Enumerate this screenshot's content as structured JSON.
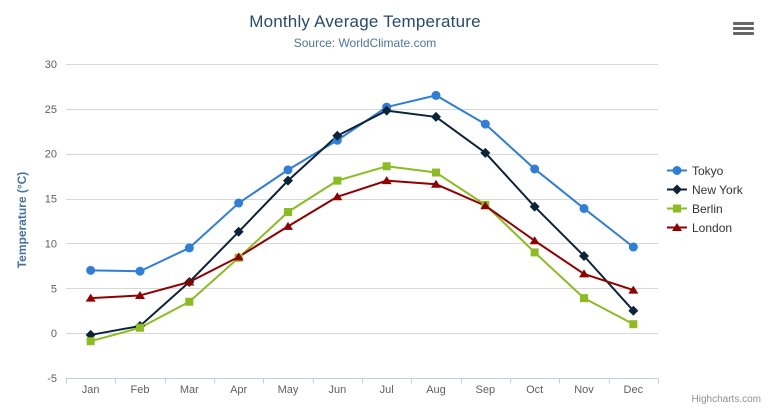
{
  "chart": {
    "title": "Monthly Average Temperature",
    "subtitle": "Source: WorldClimate.com",
    "y_axis_title": "Temperature (°C)",
    "credits": "Highcharts.com",
    "colors": {
      "title": "#274b6d",
      "subtitle": "#4d759e",
      "axis_title": "#4572a7",
      "tick_label": "#606060",
      "gridline": "#d8d8d8",
      "axis_line": "#c0d0e0",
      "legend_text": "#333333",
      "credits_text": "#909090",
      "menu_icon": "#666666"
    }
  },
  "chart_data": {
    "type": "line",
    "title": "Monthly Average Temperature",
    "subtitle": "Source: WorldClimate.com",
    "xlabel": "",
    "ylabel": "Temperature (°C)",
    "ylim": [
      -5,
      30
    ],
    "ytick_step": 5,
    "grid": true,
    "legend_position": "right",
    "categories": [
      "Jan",
      "Feb",
      "Mar",
      "Apr",
      "May",
      "Jun",
      "Jul",
      "Aug",
      "Sep",
      "Oct",
      "Nov",
      "Dec"
    ],
    "series": [
      {
        "name": "Tokyo",
        "color": "#2f7ed8",
        "marker": "circle",
        "values": [
          7.0,
          6.9,
          9.5,
          14.5,
          18.2,
          21.5,
          25.2,
          26.5,
          23.3,
          18.3,
          13.9,
          9.6
        ]
      },
      {
        "name": "New York",
        "color": "#0d233a",
        "marker": "diamond",
        "values": [
          -0.2,
          0.8,
          5.7,
          11.3,
          17.0,
          22.0,
          24.8,
          24.1,
          20.1,
          14.1,
          8.6,
          2.5
        ]
      },
      {
        "name": "Berlin",
        "color": "#8bbc21",
        "marker": "square",
        "values": [
          -0.9,
          0.6,
          3.5,
          8.4,
          13.5,
          17.0,
          18.6,
          17.9,
          14.3,
          9.0,
          3.9,
          1.0
        ]
      },
      {
        "name": "London",
        "color": "#910000",
        "marker": "triangle",
        "values": [
          3.9,
          4.2,
          5.7,
          8.5,
          11.9,
          15.2,
          17.0,
          16.6,
          14.2,
          10.3,
          6.6,
          4.8
        ]
      }
    ]
  }
}
